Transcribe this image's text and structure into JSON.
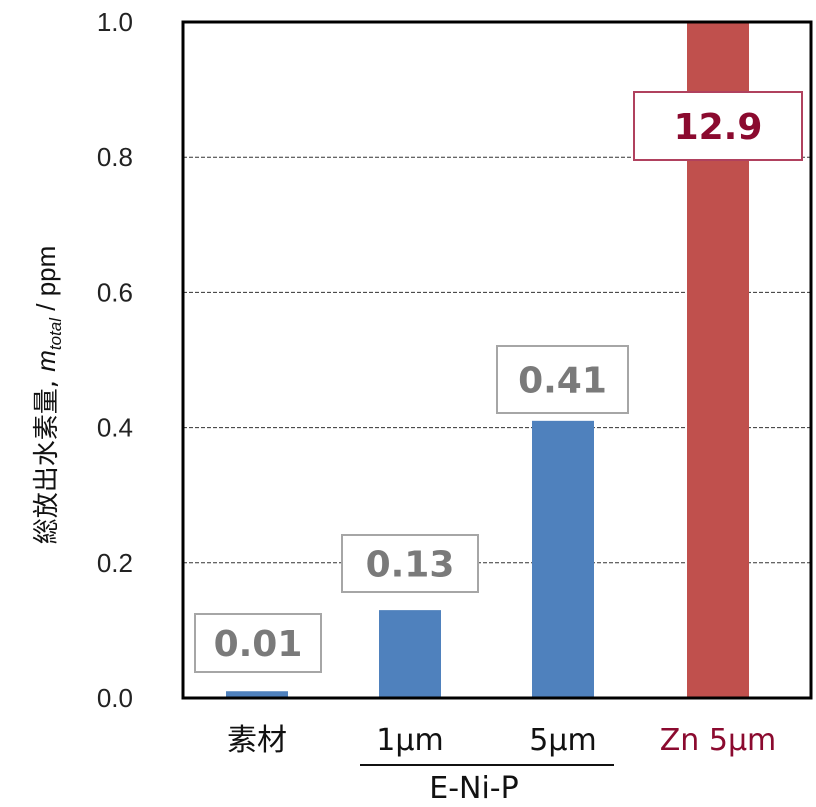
{
  "chart_data": {
    "type": "bar",
    "categories": [
      "素材",
      "1μm",
      "5μm",
      "Zn 5μm"
    ],
    "values": [
      0.01,
      0.13,
      0.41,
      12.9
    ],
    "data_labels": [
      "0.01",
      "0.13",
      "0.41",
      "12.9"
    ],
    "ylabel_main": "総放出水素量,",
    "ylabel_var": "m",
    "ylabel_sub": "total",
    "ylabel_unit": " / ppm",
    "ylim": [
      0,
      1.0
    ],
    "yticks": [
      "0.0",
      "0.2",
      "0.4",
      "0.6",
      "0.8",
      "1.0"
    ],
    "grid": true,
    "group_label": "E-Ni-P",
    "colors": {
      "bar": "#4f81bd",
      "highlight_bar": "#c0504d",
      "highlight_text": "#8b0a2f",
      "label_text": "#7a7a7a",
      "label_border": "#a6a6a6",
      "highlight_border": "#b0415e"
    }
  }
}
